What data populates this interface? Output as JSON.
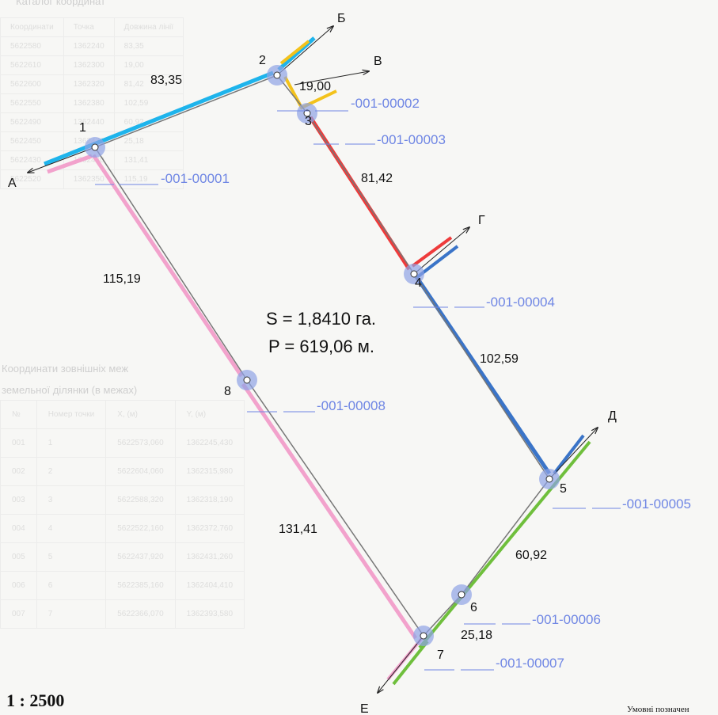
{
  "diagram": {
    "vertices": [
      {
        "id": "1",
        "label": "1"
      },
      {
        "id": "2",
        "label": "2"
      },
      {
        "id": "3",
        "label": "3"
      },
      {
        "id": "4",
        "label": "4"
      },
      {
        "id": "5",
        "label": "5"
      },
      {
        "id": "6",
        "label": "6"
      },
      {
        "id": "7",
        "label": "7"
      },
      {
        "id": "8",
        "label": "8"
      }
    ],
    "segments": [
      {
        "from": "1",
        "to": "2",
        "length": "83,35",
        "color": "#1eb4ec"
      },
      {
        "from": "2",
        "to": "3",
        "length": "19,00",
        "color": "#f3c21b"
      },
      {
        "from": "3",
        "to": "4",
        "length": "81,42",
        "color": "#ee3b3b"
      },
      {
        "from": "4",
        "to": "5",
        "length": "102,59",
        "color": "#3a74c8"
      },
      {
        "from": "5",
        "to": "6",
        "length": "60,92",
        "color": "#6fbf3c"
      },
      {
        "from": "6",
        "to": "7",
        "length": "25,18",
        "color": "#6fbf3c"
      },
      {
        "from": "7",
        "to": "8",
        "length": "131,41",
        "color": "#f2a2cc"
      },
      {
        "from": "8",
        "to": "1",
        "length": "115,19",
        "color": "#f2a2cc"
      }
    ],
    "neighbor_letters": [
      "А",
      "Б",
      "В",
      "Г",
      "Д",
      "Е"
    ],
    "parcel_codes": [
      "-001-00001",
      "-001-00002",
      "-001-00003",
      "-001-00004",
      "-001-00005",
      "-001-00006",
      "-001-00007",
      "-001-00008"
    ],
    "area": "S = 1,8410 га.",
    "perimeter": "P = 619,06 м.",
    "scale": "1 : 2500",
    "legend_caption": "Умовні позначен",
    "colors": {
      "boundary_line": "#777777",
      "vertex_marker": "#8fa3e6",
      "code_text": "#6f86e4",
      "label_text": "#111111"
    }
  },
  "background": {
    "header_caption": "Каталог координат",
    "mid_caption": "Координати зовнішніх меж",
    "mid_caption_2": "земельної ділянки (в межах)",
    "upper_table_rows": [
      [
        "Координати",
        "Точка",
        "Довжина лінії"
      ],
      [
        "5622580",
        "1362240",
        "83,35"
      ],
      [
        "5622610",
        "1362300",
        "19,00"
      ],
      [
        "5622600",
        "1362320",
        "81,42"
      ],
      [
        "5622550",
        "1362380",
        "102,59"
      ],
      [
        "5622490",
        "1362440",
        "60,92"
      ],
      [
        "5622450",
        "1362470",
        "25,18"
      ],
      [
        "5622430",
        "1362480",
        "131,41"
      ],
      [
        "5622520",
        "1362350",
        "115,19"
      ]
    ],
    "lower_table_rows": [
      [
        "№",
        "Номер точки",
        "X, (м)",
        "Y, (м)"
      ],
      [
        "001",
        "1",
        "5622573,060",
        "1362245,430"
      ],
      [
        "002",
        "2",
        "5622604,060",
        "1362315,980"
      ],
      [
        "003",
        "3",
        "5622588,320",
        "1362318,190"
      ],
      [
        "004",
        "4",
        "5622522,160",
        "1362372,760"
      ],
      [
        "005",
        "5",
        "5622437,920",
        "1362431,260"
      ],
      [
        "006",
        "6",
        "5622385,160",
        "1362404,410"
      ],
      [
        "007",
        "7",
        "5622366,070",
        "1362393,580"
      ]
    ]
  }
}
